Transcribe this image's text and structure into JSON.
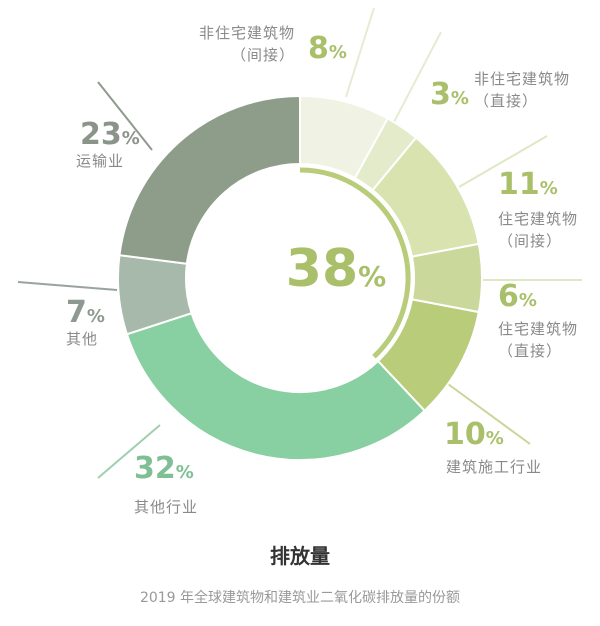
{
  "chart_data": {
    "type": "pie",
    "title": "排放量",
    "subtitle": "2019 年全球建筑物和建筑业二氧化碳排放量的份额",
    "center_label": "38%",
    "center_value": 38,
    "slices": [
      {
        "name": "非住宅建筑物（间接）",
        "label_lines": [
          "非住宅建筑物",
          "（间接）"
        ],
        "value": 8,
        "display": "8%",
        "color": "#f0f3e4",
        "text_color": "#a9bf6a"
      },
      {
        "name": "非住宅建筑物（直接）",
        "label_lines": [
          "非住宅建筑物",
          "（直接）"
        ],
        "value": 3,
        "display": "3%",
        "color": "#e3ebcb",
        "text_color": "#a9bf6a"
      },
      {
        "name": "住宅建筑物（间接）",
        "label_lines": [
          "住宅建筑物",
          "（间接）"
        ],
        "value": 11,
        "display": "11%",
        "color": "#d8e3b0",
        "text_color": "#a9bf6a"
      },
      {
        "name": "住宅建筑物（直接）",
        "label_lines": [
          "住宅建筑物",
          "（直接）"
        ],
        "value": 6,
        "display": "6%",
        "color": "#cad99b",
        "text_color": "#a9bf6a"
      },
      {
        "name": "建筑施工行业",
        "label_lines": [
          "建筑施工行业"
        ],
        "value": 10,
        "display": "10%",
        "color": "#b8cc7a",
        "text_color": "#a9bf6a"
      },
      {
        "name": "其他行业",
        "label_lines": [
          "其他行业"
        ],
        "value": 32,
        "display": "32%",
        "color": "#88cfa1",
        "text_color": "#7fbf94"
      },
      {
        "name": "其他",
        "label_lines": [
          "其他"
        ],
        "value": 7,
        "display": "7%",
        "color": "#a7b9aa",
        "text_color": "#8e9a90"
      },
      {
        "name": "运输业",
        "label_lines": [
          "运输业"
        ],
        "value": 23,
        "display": "23%",
        "color": "#8e9d8a",
        "text_color": "#8a9488"
      }
    ]
  }
}
